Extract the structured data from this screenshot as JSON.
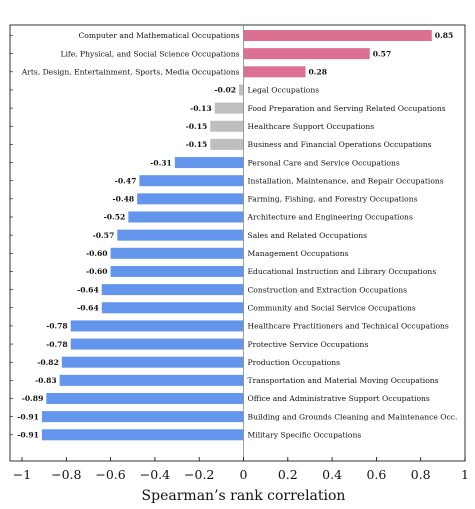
{
  "chart_data": {
    "type": "bar",
    "orientation": "horizontal",
    "title": "",
    "xlabel": "Spearman’s rank correlation",
    "ylabel": "",
    "xlim": [
      -1,
      1
    ],
    "xticks": [
      -1,
      -0.8,
      -0.6,
      -0.4,
      -0.2,
      0,
      0.2,
      0.4,
      0.6,
      0.8,
      1
    ],
    "xtick_labels": [
      "−1",
      "−0.8",
      "−0.6",
      "−0.4",
      "−0.2",
      "0",
      "0.2",
      "0.4",
      "0.6",
      "0.8",
      "1"
    ],
    "grid": false,
    "legend": "none",
    "colors": {
      "positive": "#db7093",
      "neutral": "#bfbfbf",
      "negative": "#6495ed"
    },
    "categories": [
      "Computer and Mathematical Occupations",
      "Life, Physical, and Social Science Occupations",
      "Arts, Design, Entertainment, Sports, Media Occupations",
      "Legal Occupations",
      "Food Preparation and Serving Related Occupations",
      "Healthcare Support Occupations",
      "Business and Financial Operations Occupations",
      "Personal Care and Service Occupations",
      "Installation, Maintenance, and Repair Occupations",
      "Farming, Fishing, and Forestry Occupations",
      "Architecture and Engineering Occupations",
      "Sales and Related Occupations",
      "Management Occupations",
      "Educational Instruction and Library Occupations",
      "Construction and Extraction Occupations",
      "Community and Social Service Occupations",
      "Healthcare Practitioners and Technical Occupations",
      "Protective Service Occupations",
      "Production Occupations",
      "Transportation and Material Moving Occupations",
      "Office and Administrative Support Occupations",
      "Building and Grounds Cleaning and Maintenance Occ.",
      "Military Specific Occupations"
    ],
    "values": [
      0.85,
      0.57,
      0.28,
      -0.02,
      -0.13,
      -0.15,
      -0.15,
      -0.31,
      -0.47,
      -0.48,
      -0.52,
      -0.57,
      -0.6,
      -0.6,
      -0.64,
      -0.64,
      -0.78,
      -0.78,
      -0.82,
      -0.83,
      -0.89,
      -0.91,
      -0.91
    ],
    "value_labels": [
      "0.85",
      "0.57",
      "0.28",
      "-0.02",
      "-0.13",
      "-0.15",
      "-0.15",
      "-0.31",
      "-0.47",
      "-0.48",
      "-0.52",
      "-0.57",
      "-0.60",
      "-0.60",
      "-0.64",
      "-0.64",
      "-0.78",
      "-0.78",
      "-0.82",
      "-0.83",
      "-0.89",
      "-0.91",
      "-0.91"
    ],
    "groups": [
      "positive",
      "positive",
      "positive",
      "neutral",
      "neutral",
      "neutral",
      "neutral",
      "negative",
      "negative",
      "negative",
      "negative",
      "negative",
      "negative",
      "negative",
      "negative",
      "negative",
      "negative",
      "negative",
      "negative",
      "negative",
      "negative",
      "negative",
      "negative"
    ]
  }
}
